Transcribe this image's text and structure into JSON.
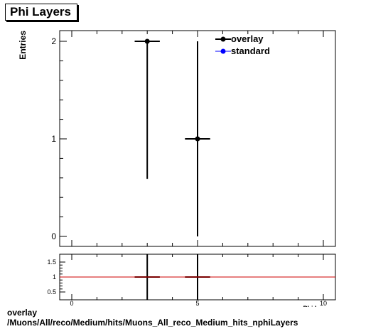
{
  "title": "Phi Layers",
  "footer": {
    "line1": "overlay",
    "line2": "/Muons/All/reco/Medium/hits/Muons_All_reco_Medium_hits_nphiLayers"
  },
  "colors": {
    "overlay": "#000000",
    "standard": "#0000ff",
    "ratio_line": "#cc0000"
  },
  "chart_data": [
    {
      "type": "scatter",
      "title": "Phi Layers",
      "xlabel": "Phi Layers",
      "ylabel": "Entries",
      "xlim": [
        0,
        10
      ],
      "ylim": [
        0,
        2
      ],
      "y_ticks": [
        "0",
        "1",
        "2"
      ],
      "legend": {
        "placement": "top-right",
        "entries": [
          "overlay",
          "standard"
        ]
      },
      "series": [
        {
          "name": "overlay",
          "points": [
            {
              "x": 3,
              "y": 2,
              "xerr": 0.5,
              "ylow": 0.59,
              "yhigh": 2.0
            },
            {
              "x": 5,
              "y": 1,
              "xerr": 0.5,
              "ylow": 0.0,
              "yhigh": 2.0
            }
          ]
        },
        {
          "name": "standard",
          "points": []
        }
      ]
    },
    {
      "type": "line",
      "xlim": [
        0,
        10
      ],
      "ylim": [
        0.5,
        1.5
      ],
      "y_ticks": [
        "0.5",
        "1",
        "1.5"
      ],
      "x_ticks": [
        "0",
        "5",
        "10"
      ],
      "reference_y": 1,
      "points": [
        {
          "x": 3,
          "y": 1,
          "xerr": 0.5
        },
        {
          "x": 5,
          "y": 1,
          "xerr": 0.5
        }
      ]
    }
  ]
}
